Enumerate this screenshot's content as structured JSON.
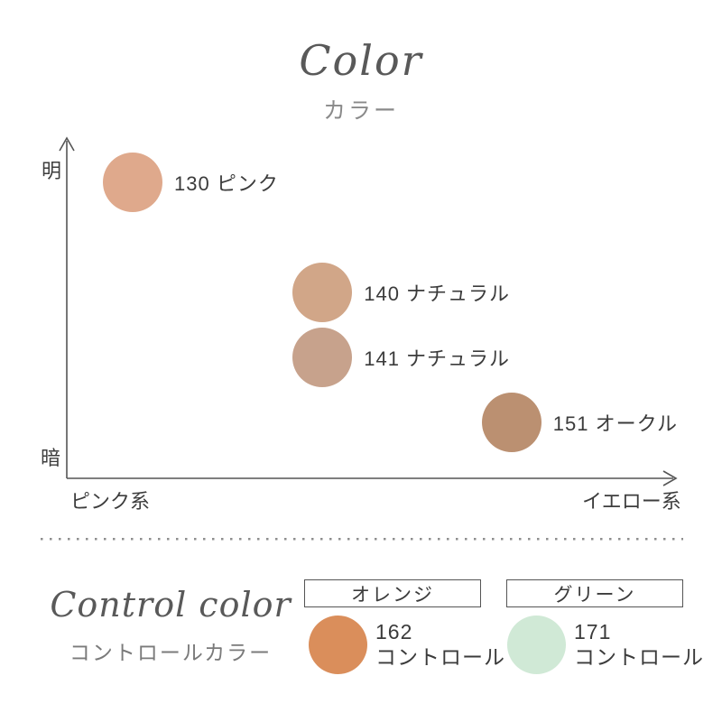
{
  "title": {
    "text": "Color",
    "subtitle": "カラー"
  },
  "chart_data": {
    "type": "scatter",
    "title": "Color",
    "subtitle": "カラー",
    "y_axis": {
      "top_label": "明",
      "bottom_label": "暗"
    },
    "x_axis": {
      "left_label": "ピンク系",
      "right_label": "イエロー系"
    },
    "axis_color": "#555555",
    "points": [
      {
        "label": "130 ピンク",
        "color": "#dfa98c",
        "x": 0.108,
        "y": 0.868
      },
      {
        "label": "140 ナチュラル",
        "color": "#d1a688",
        "x": 0.419,
        "y": 0.545
      },
      {
        "label": "141 ナチュラル",
        "color": "#c7a28c",
        "x": 0.419,
        "y": 0.354
      },
      {
        "label": "151 オークル",
        "color": "#bb9071",
        "x": 0.729,
        "y": 0.164
      }
    ]
  },
  "control_section": {
    "title": "Control color",
    "subtitle": "コントロールカラー",
    "items": [
      {
        "category": "オレンジ",
        "number": "162",
        "label": "コントロール",
        "color": "#da8e5b"
      },
      {
        "category": "グリーン",
        "number": "171",
        "label": "コントロール",
        "color": "#d0e9d6"
      }
    ]
  }
}
